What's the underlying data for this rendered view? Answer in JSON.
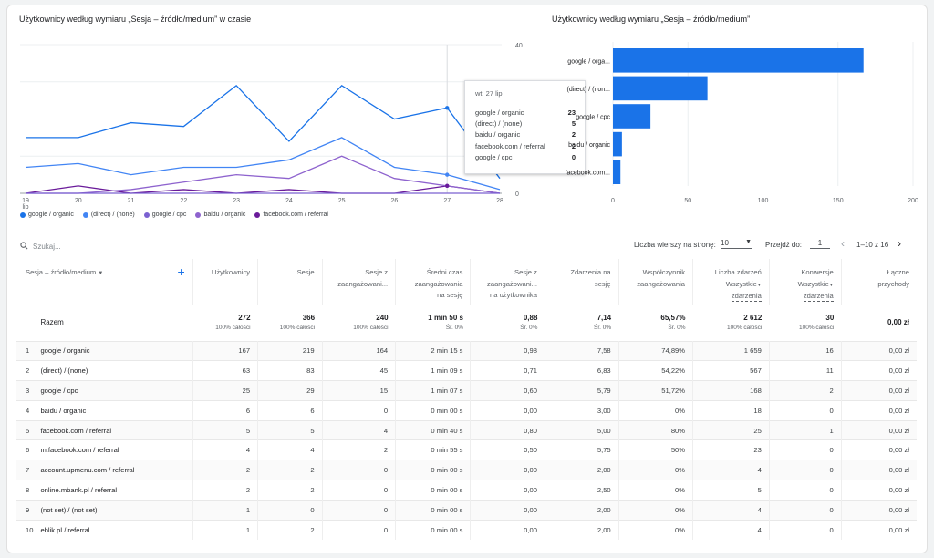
{
  "line_chart": {
    "title": "Użytkownicy według wymiaru „Sesja – źródło/medium” w czasie",
    "chart_data": {
      "type": "line",
      "x": [
        "19",
        "20",
        "21",
        "22",
        "23",
        "24",
        "25",
        "26",
        "27",
        "28"
      ],
      "x_sublabel": "lip",
      "ylim": [
        0,
        40
      ],
      "y_ticks": [
        "40",
        "20",
        "0"
      ],
      "series": [
        {
          "name": "google / organic",
          "color": "#1a73e8",
          "values": [
            15,
            15,
            19,
            18,
            29,
            14,
            29,
            20,
            23,
            4
          ]
        },
        {
          "name": "(direct) / (none)",
          "color": "#4285f4",
          "values": [
            7,
            8,
            5,
            7,
            7,
            9,
            15,
            7,
            5,
            1
          ]
        },
        {
          "name": "google / cpc",
          "color": "#7b61d1",
          "values": [
            0,
            0,
            0,
            0,
            0,
            0,
            0,
            0,
            0,
            0
          ]
        },
        {
          "name": "baidu / organic",
          "color": "#8e63ce",
          "values": [
            0,
            0,
            1,
            3,
            5,
            4,
            10,
            4,
            2,
            0
          ]
        },
        {
          "name": "facebook.com / referral",
          "color": "#6a1b9a",
          "values": [
            0,
            2,
            0,
            1,
            0,
            1,
            0,
            0,
            2,
            0
          ]
        }
      ]
    },
    "tooltip": {
      "date": "wt. 27 lip",
      "rows": [
        {
          "name": "google / organic",
          "value": "23"
        },
        {
          "name": "(direct) / (none)",
          "value": "5"
        },
        {
          "name": "baidu / organic",
          "value": "2"
        },
        {
          "name": "facebook.com / referral",
          "value": "2"
        },
        {
          "name": "google / cpc",
          "value": "0"
        }
      ]
    }
  },
  "bar_chart": {
    "title": "Użytkownicy według wymiaru „Sesja – źródło/medium”",
    "chart_data": {
      "type": "bar",
      "orientation": "horizontal",
      "categories": [
        "google / organic",
        "(direct) / (none)",
        "google / cpc",
        "baidu / organic",
        "facebook.com / referral"
      ],
      "category_labels_visible": [
        "google / orga...",
        "(direct) / (non...",
        "google / cpc",
        "baidu / organic",
        "facebook.com..."
      ],
      "values": [
        167,
        63,
        25,
        6,
        5
      ],
      "xlim": [
        0,
        200
      ],
      "x_ticks": [
        "0",
        "50",
        "100",
        "150",
        "200"
      ],
      "color": "#1a73e8"
    }
  },
  "toolbar": {
    "search_placeholder": "Szukaj...",
    "rows_per_page_label": "Liczba wierszy na stronę:",
    "rows_per_page_value": "10",
    "goto_label": "Przejdź do:",
    "goto_value": "1",
    "range_text": "1–10 z 16"
  },
  "table": {
    "headers": {
      "dimension": "Sesja – źródło/medium",
      "users": "Użytkownicy",
      "sessions": "Sesje",
      "engaged_sessions": [
        "Sesje z",
        "zaangażowani..."
      ],
      "avg_time": [
        "Średni czas",
        "zaangażowania",
        "na sesję"
      ],
      "engaged_per_user": [
        "Sesje z",
        "zaangażowani...",
        "na użytkownika"
      ],
      "events_per_session": [
        "Zdarzenia na",
        "sesję"
      ],
      "engagement_rate": [
        "Współczynnik",
        "zaangażowania"
      ],
      "event_count": [
        "Liczba zdarzeń",
        "Wszystkie"
      ],
      "event_count_sub": "zdarzenia",
      "conversions": [
        "Konwersje",
        "Wszystkie"
      ],
      "conversions_sub": "zdarzenia",
      "revenue": [
        "Łączne",
        "przychody"
      ]
    },
    "total": {
      "label": "Razem",
      "cells": [
        {
          "v": "272",
          "s": "100% całości"
        },
        {
          "v": "366",
          "s": "100% całości"
        },
        {
          "v": "240",
          "s": "100% całości"
        },
        {
          "v": "1 min 50 s",
          "s": "Śr. 0%"
        },
        {
          "v": "0,88",
          "s": "Śr. 0%"
        },
        {
          "v": "7,14",
          "s": "Śr. 0%"
        },
        {
          "v": "65,57%",
          "s": "Śr. 0%"
        },
        {
          "v": "2 612",
          "s": "100% całości"
        },
        {
          "v": "30",
          "s": "100% całości"
        },
        {
          "v": "0,00 zł",
          "s": ""
        }
      ]
    },
    "rows": [
      {
        "idx": "1",
        "name": "google / organic",
        "cells": [
          "167",
          "219",
          "164",
          "2 min 15 s",
          "0,98",
          "7,58",
          "74,89%",
          "1 659",
          "16",
          "0,00 zł"
        ]
      },
      {
        "idx": "2",
        "name": "(direct) / (none)",
        "cells": [
          "63",
          "83",
          "45",
          "1 min 09 s",
          "0,71",
          "6,83",
          "54,22%",
          "567",
          "11",
          "0,00 zł"
        ]
      },
      {
        "idx": "3",
        "name": "google / cpc",
        "cells": [
          "25",
          "29",
          "15",
          "1 min 07 s",
          "0,60",
          "5,79",
          "51,72%",
          "168",
          "2",
          "0,00 zł"
        ]
      },
      {
        "idx": "4",
        "name": "baidu / organic",
        "cells": [
          "6",
          "6",
          "0",
          "0 min 00 s",
          "0,00",
          "3,00",
          "0%",
          "18",
          "0",
          "0,00 zł"
        ]
      },
      {
        "idx": "5",
        "name": "facebook.com / referral",
        "cells": [
          "5",
          "5",
          "4",
          "0 min 40 s",
          "0,80",
          "5,00",
          "80%",
          "25",
          "1",
          "0,00 zł"
        ]
      },
      {
        "idx": "6",
        "name": "m.facebook.com / referral",
        "cells": [
          "4",
          "4",
          "2",
          "0 min 55 s",
          "0,50",
          "5,75",
          "50%",
          "23",
          "0",
          "0,00 zł"
        ]
      },
      {
        "idx": "7",
        "name": "account.upmenu.com / referral",
        "cells": [
          "2",
          "2",
          "0",
          "0 min 00 s",
          "0,00",
          "2,00",
          "0%",
          "4",
          "0",
          "0,00 zł"
        ]
      },
      {
        "idx": "8",
        "name": "online.mbank.pl / referral",
        "cells": [
          "2",
          "2",
          "0",
          "0 min 00 s",
          "0,00",
          "2,50",
          "0%",
          "5",
          "0",
          "0,00 zł"
        ]
      },
      {
        "idx": "9",
        "name": "(not set) / (not set)",
        "cells": [
          "1",
          "0",
          "0",
          "0 min 00 s",
          "0,00",
          "2,00",
          "0%",
          "4",
          "0",
          "0,00 zł"
        ]
      },
      {
        "idx": "10",
        "name": "eblik.pl / referral",
        "cells": [
          "1",
          "2",
          "0",
          "0 min 00 s",
          "0,00",
          "2,00",
          "0%",
          "4",
          "0",
          "0,00 zł"
        ]
      }
    ]
  }
}
